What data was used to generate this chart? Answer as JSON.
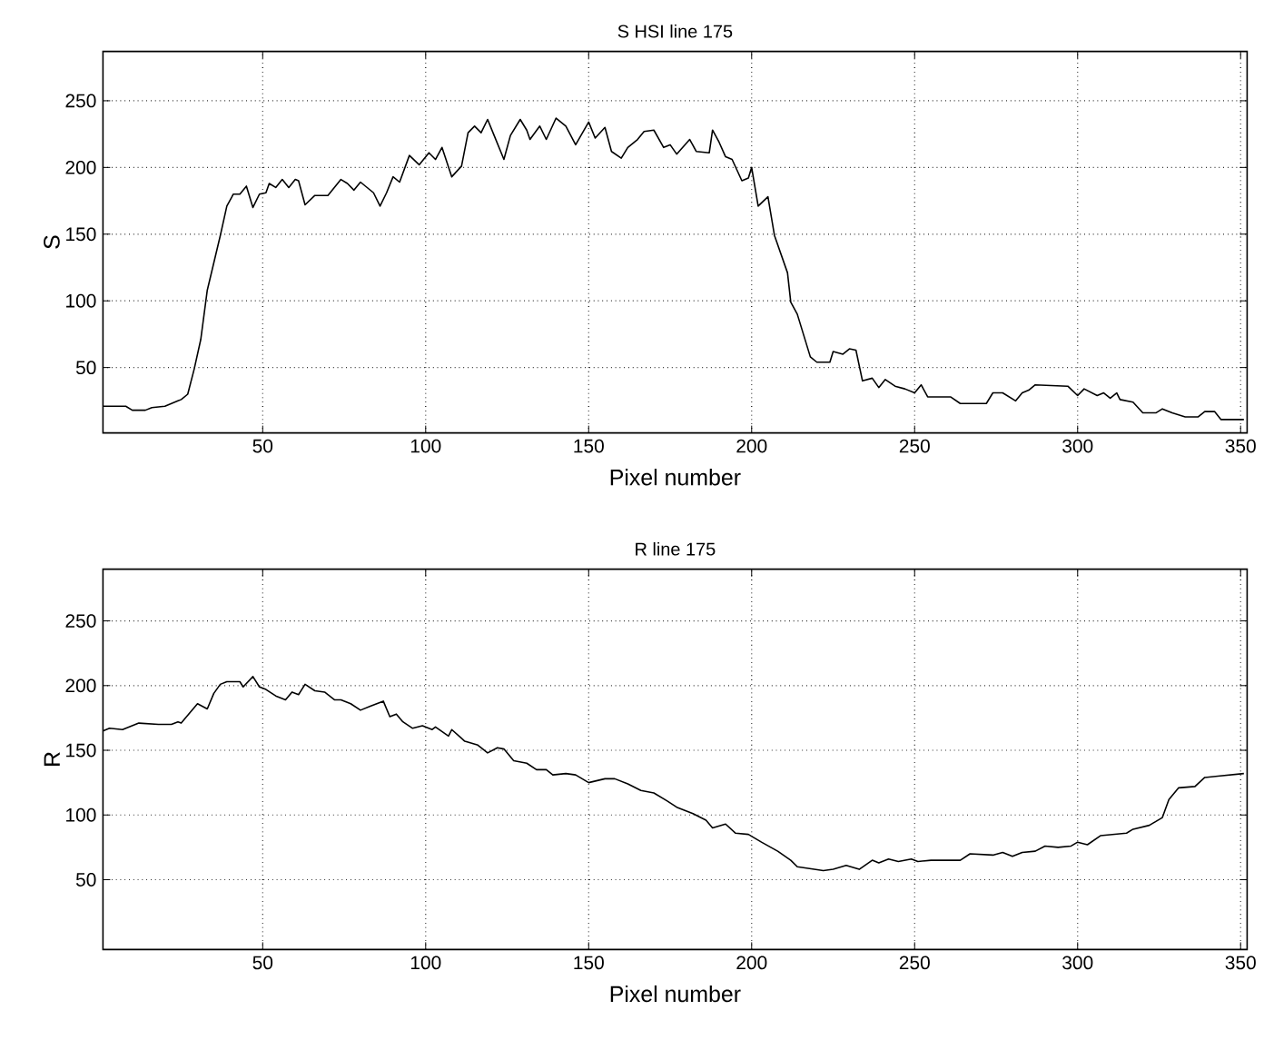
{
  "chart_data": [
    {
      "type": "line",
      "title": "S HSI line 175",
      "xlabel": "Pixel number",
      "ylabel": "S",
      "color": "#000000",
      "grid": true,
      "xlim": [
        1,
        352
      ],
      "ylim": [
        1,
        287
      ],
      "xticks": [
        50,
        100,
        150,
        200,
        250,
        300,
        350
      ],
      "yticks": [
        50,
        100,
        150,
        200,
        250
      ],
      "x": [
        1,
        8,
        10,
        14,
        16,
        20,
        24,
        25,
        27,
        29,
        31,
        33,
        37,
        39,
        41,
        43,
        45,
        47,
        49,
        51,
        52,
        54,
        56,
        58,
        60,
        61,
        63,
        66,
        70,
        74,
        76,
        78,
        80,
        82,
        84,
        86,
        88,
        90,
        92,
        95,
        98,
        101,
        103,
        105,
        108,
        111,
        113,
        115,
        117,
        119,
        121,
        124,
        126,
        129,
        131,
        132,
        135,
        137,
        140,
        143,
        146,
        150,
        152,
        155,
        157,
        160,
        162,
        165,
        167,
        170,
        173,
        175,
        177,
        181,
        183,
        187,
        188,
        190,
        192,
        194,
        197,
        199,
        200,
        202,
        205,
        207,
        211,
        212,
        214,
        218,
        220,
        224,
        225,
        228,
        230,
        232,
        234,
        237,
        239,
        241,
        244,
        247,
        250,
        252,
        254,
        261,
        264,
        272,
        274,
        277,
        281,
        283,
        285,
        287,
        297,
        300,
        302,
        306,
        308,
        310,
        312,
        313,
        317,
        320,
        324,
        326,
        329,
        333,
        337,
        339,
        342,
        344,
        351
      ],
      "values": [
        21,
        21,
        18,
        18,
        20,
        21,
        25,
        26,
        30,
        49,
        71,
        108,
        149,
        171,
        180,
        180,
        186,
        170,
        180,
        181,
        188,
        185,
        191,
        185,
        191,
        190,
        172,
        179,
        179,
        191,
        188,
        183,
        189,
        185,
        181,
        171,
        181,
        193,
        189,
        209,
        202,
        211,
        206,
        215,
        193,
        201,
        226,
        231,
        226,
        236,
        224,
        206,
        224,
        236,
        228,
        221,
        231,
        221,
        237,
        231,
        217,
        234,
        222,
        230,
        212,
        207,
        215,
        221,
        227,
        228,
        215,
        217,
        210,
        221,
        212,
        211,
        228,
        219,
        208,
        206,
        190,
        192,
        200,
        171,
        178,
        149,
        121,
        99,
        90,
        58,
        54,
        54,
        62,
        60,
        64,
        63,
        40,
        42,
        35,
        41,
        36,
        34,
        31,
        37,
        28,
        28,
        23,
        23,
        31,
        31,
        25,
        31,
        33,
        37,
        36,
        29,
        34,
        29,
        31,
        27,
        31,
        26,
        24,
        16,
        16,
        19,
        16,
        13,
        13,
        17,
        17,
        11,
        11
      ]
    },
    {
      "type": "line",
      "title": "R line 175",
      "xlabel": "Pixel number",
      "ylabel": "R",
      "color": "#000000",
      "grid": true,
      "xlim": [
        1,
        352
      ],
      "ylim": [
        -4,
        290
      ],
      "xticks": [
        50,
        100,
        150,
        200,
        250,
        300,
        350
      ],
      "yticks": [
        50,
        100,
        150,
        200,
        250
      ],
      "x": [
        1,
        3,
        7,
        12,
        18,
        22,
        24,
        25,
        27,
        30,
        33,
        35,
        37,
        39,
        43,
        44,
        47,
        49,
        51,
        54,
        57,
        59,
        61,
        63,
        66,
        69,
        72,
        74,
        77,
        80,
        83,
        87,
        89,
        91,
        93,
        96,
        99,
        102,
        103,
        107,
        108,
        112,
        116,
        119,
        122,
        124,
        127,
        131,
        134,
        137,
        139,
        143,
        146,
        150,
        155,
        158,
        162,
        166,
        170,
        174,
        177,
        182,
        186,
        188,
        192,
        195,
        199,
        203,
        208,
        212,
        214,
        222,
        225,
        229,
        233,
        237,
        239,
        242,
        245,
        249,
        251,
        255,
        264,
        267,
        274,
        277,
        280,
        283,
        287,
        290,
        294,
        298,
        300,
        303,
        307,
        311,
        315,
        317,
        322,
        326,
        328,
        331,
        336,
        339,
        343,
        351
      ],
      "values": [
        165,
        167,
        166,
        171,
        170,
        170,
        172,
        171,
        177,
        186,
        182,
        194,
        201,
        203,
        203,
        199,
        207,
        199,
        197,
        192,
        189,
        195,
        193,
        201,
        196,
        195,
        189,
        189,
        186,
        181,
        184,
        188,
        176,
        178,
        172,
        167,
        169,
        166,
        168,
        161,
        166,
        157,
        154,
        148,
        152,
        151,
        142,
        140,
        135,
        135,
        131,
        132,
        131,
        125,
        128,
        128,
        124,
        119,
        117,
        111,
        106,
        101,
        96,
        90,
        93,
        86,
        85,
        79,
        72,
        65,
        60,
        57,
        58,
        61,
        58,
        65,
        63,
        66,
        64,
        66,
        64,
        65,
        65,
        70,
        69,
        71,
        68,
        71,
        72,
        76,
        75,
        76,
        79,
        77,
        84,
        85,
        86,
        89,
        92,
        98,
        112,
        121,
        122,
        129,
        130,
        132
      ]
    }
  ]
}
